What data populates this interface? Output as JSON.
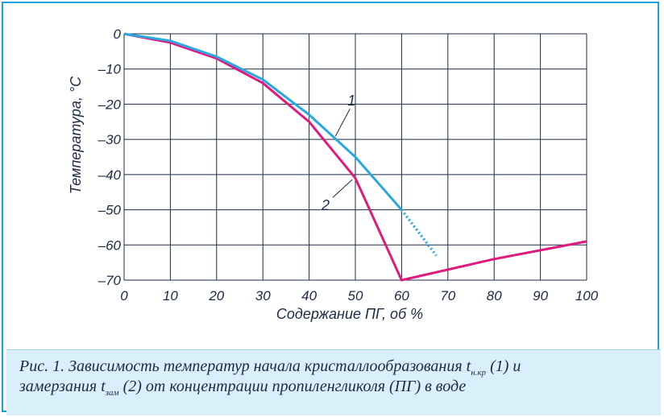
{
  "chart_data": {
    "type": "line",
    "xlabel": "Содержание ПГ, об %",
    "ylabel": "Температура, °С",
    "xlim": [
      0,
      100
    ],
    "ylim": [
      -70,
      0
    ],
    "xticks": [
      "0",
      "10",
      "20",
      "30",
      "40",
      "50",
      "60",
      "70",
      "80",
      "90",
      "100"
    ],
    "yticks": [
      "0",
      "–10",
      "–20",
      "–30",
      "–40",
      "–50",
      "–60",
      "–70"
    ],
    "grid": true,
    "series": [
      {
        "name": "1",
        "color": "#29a8df",
        "x": [
          0,
          10,
          20,
          30,
          40,
          50,
          60
        ],
        "y": [
          0,
          -2,
          -6.5,
          -13,
          -23,
          -35,
          -50
        ],
        "extrapolated": {
          "x": [
            60,
            67.5
          ],
          "y": [
            -50,
            -63
          ]
        }
      },
      {
        "name": "2",
        "color": "#e0197d",
        "x": [
          0,
          10,
          20,
          30,
          40,
          50,
          60,
          80,
          100
        ],
        "y": [
          0,
          -2.5,
          -7,
          -14,
          -25,
          -41,
          -70,
          -64,
          -59
        ]
      }
    ]
  },
  "caption": {
    "text_1": "Рис. 1. Зависимость температур начала кристаллообразования ",
    "t_nkr_main": "t",
    "t_nkr_sub": "н.кр",
    "text_2": " (1) и",
    "text_3": "замерзания ",
    "t_zam_main": "t",
    "t_zam_sub": "зам",
    "text_4": " (2) от концентрации пропиленгликоля (ПГ) в воде"
  }
}
